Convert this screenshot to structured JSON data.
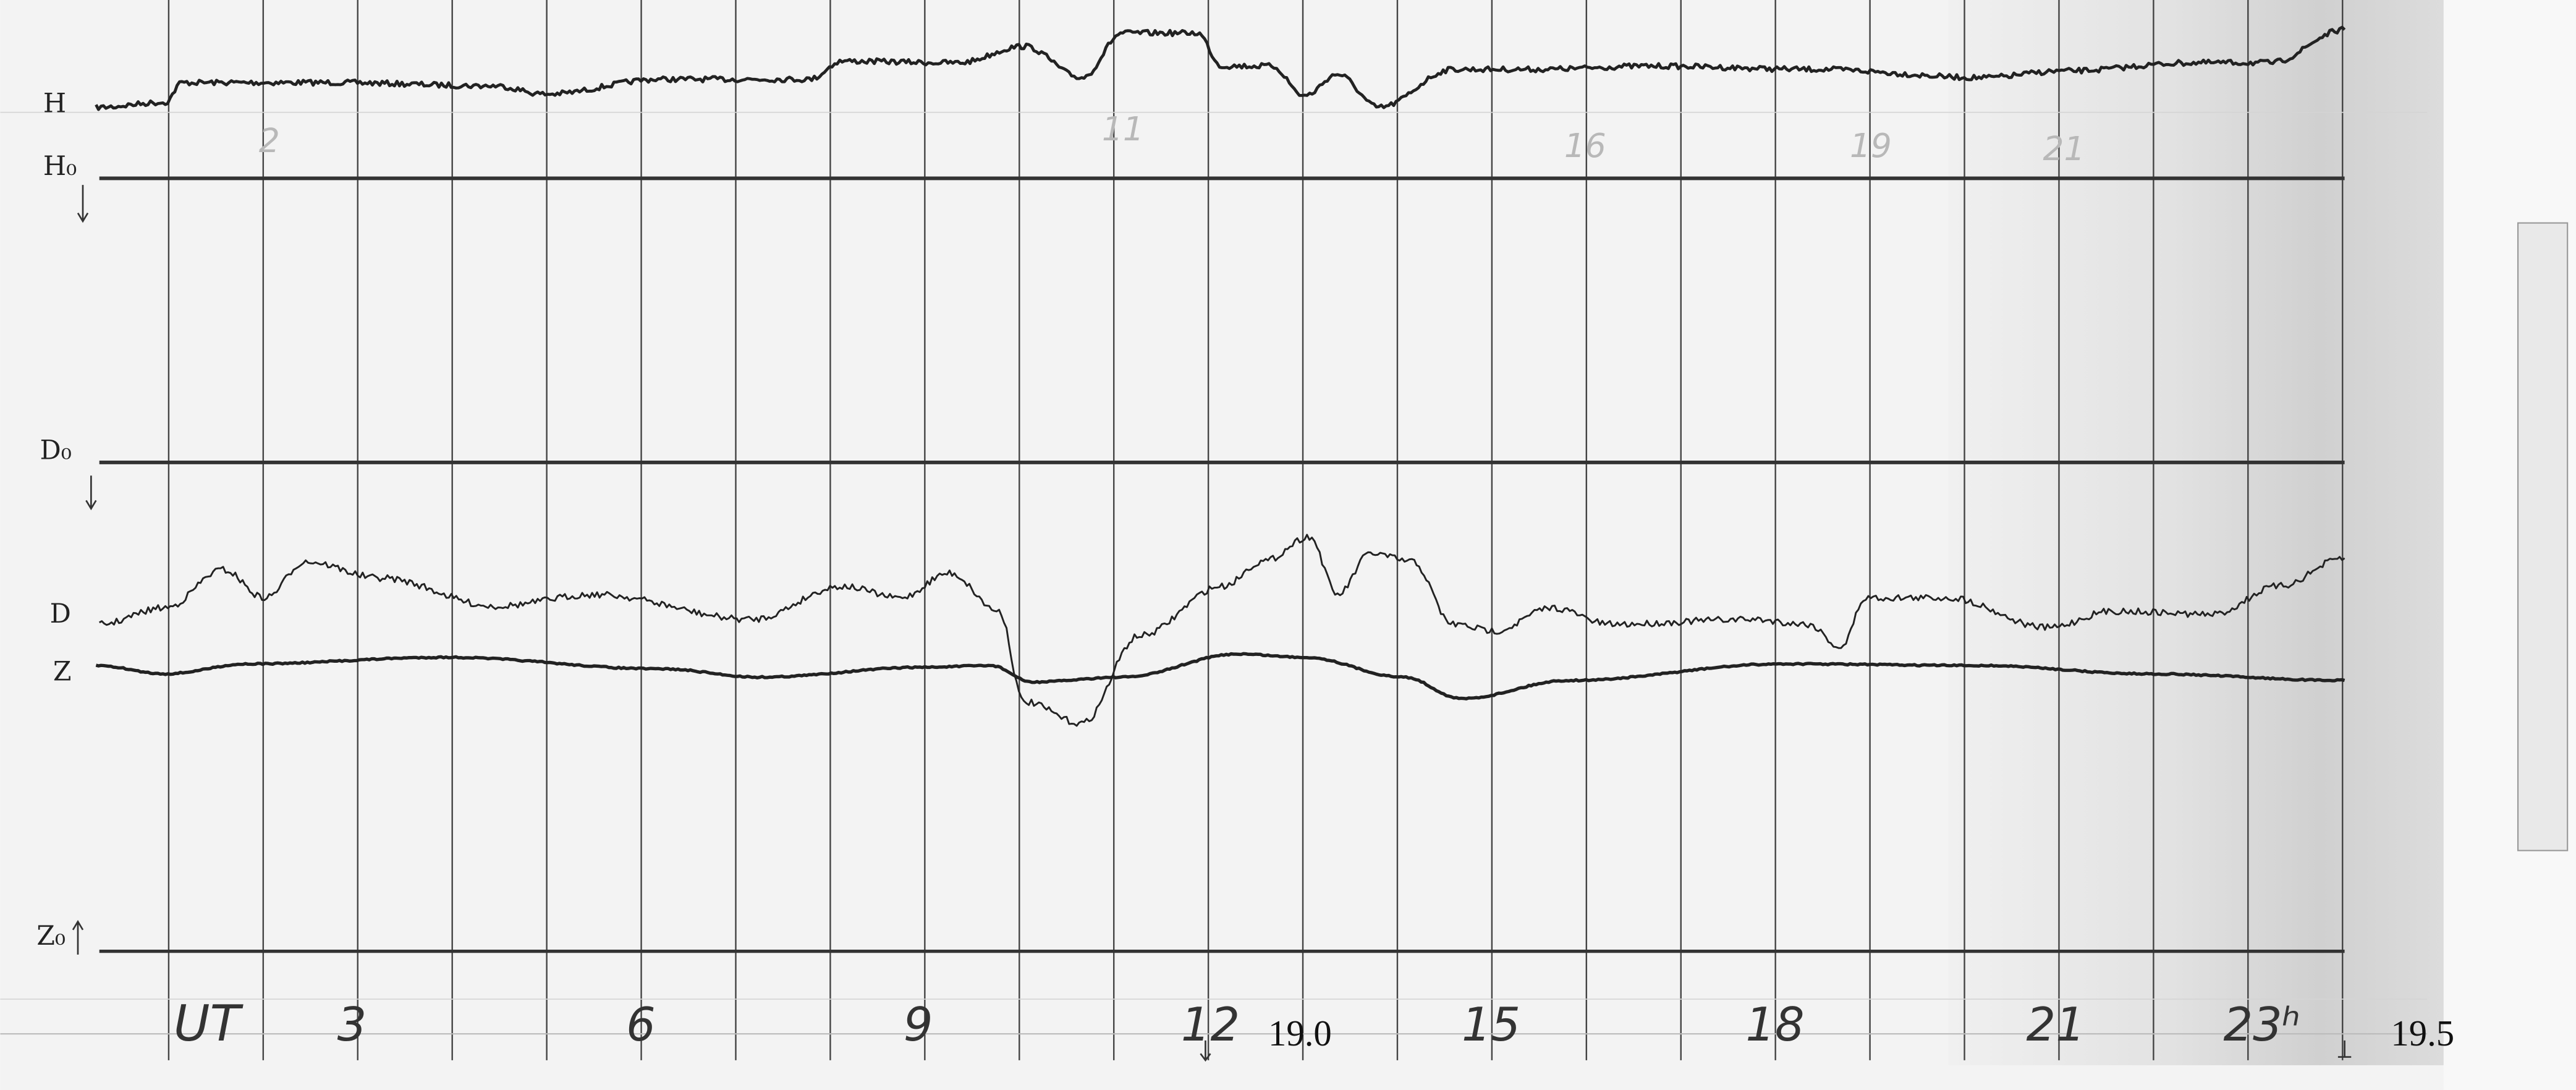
{
  "channels": {
    "H": "H",
    "H0": "H₀",
    "D0": "D₀",
    "D": "D",
    "Z": "Z",
    "Z0": "Z₀"
  },
  "time_axis": {
    "label": "UT",
    "hours": [
      "3",
      "6",
      "9",
      "12",
      "15",
      "18",
      "21",
      "23ʰ"
    ]
  },
  "dates": [
    "19.0",
    "19.5"
  ],
  "top_marks": [
    "2",
    "11",
    "16",
    "19",
    "21"
  ]
}
